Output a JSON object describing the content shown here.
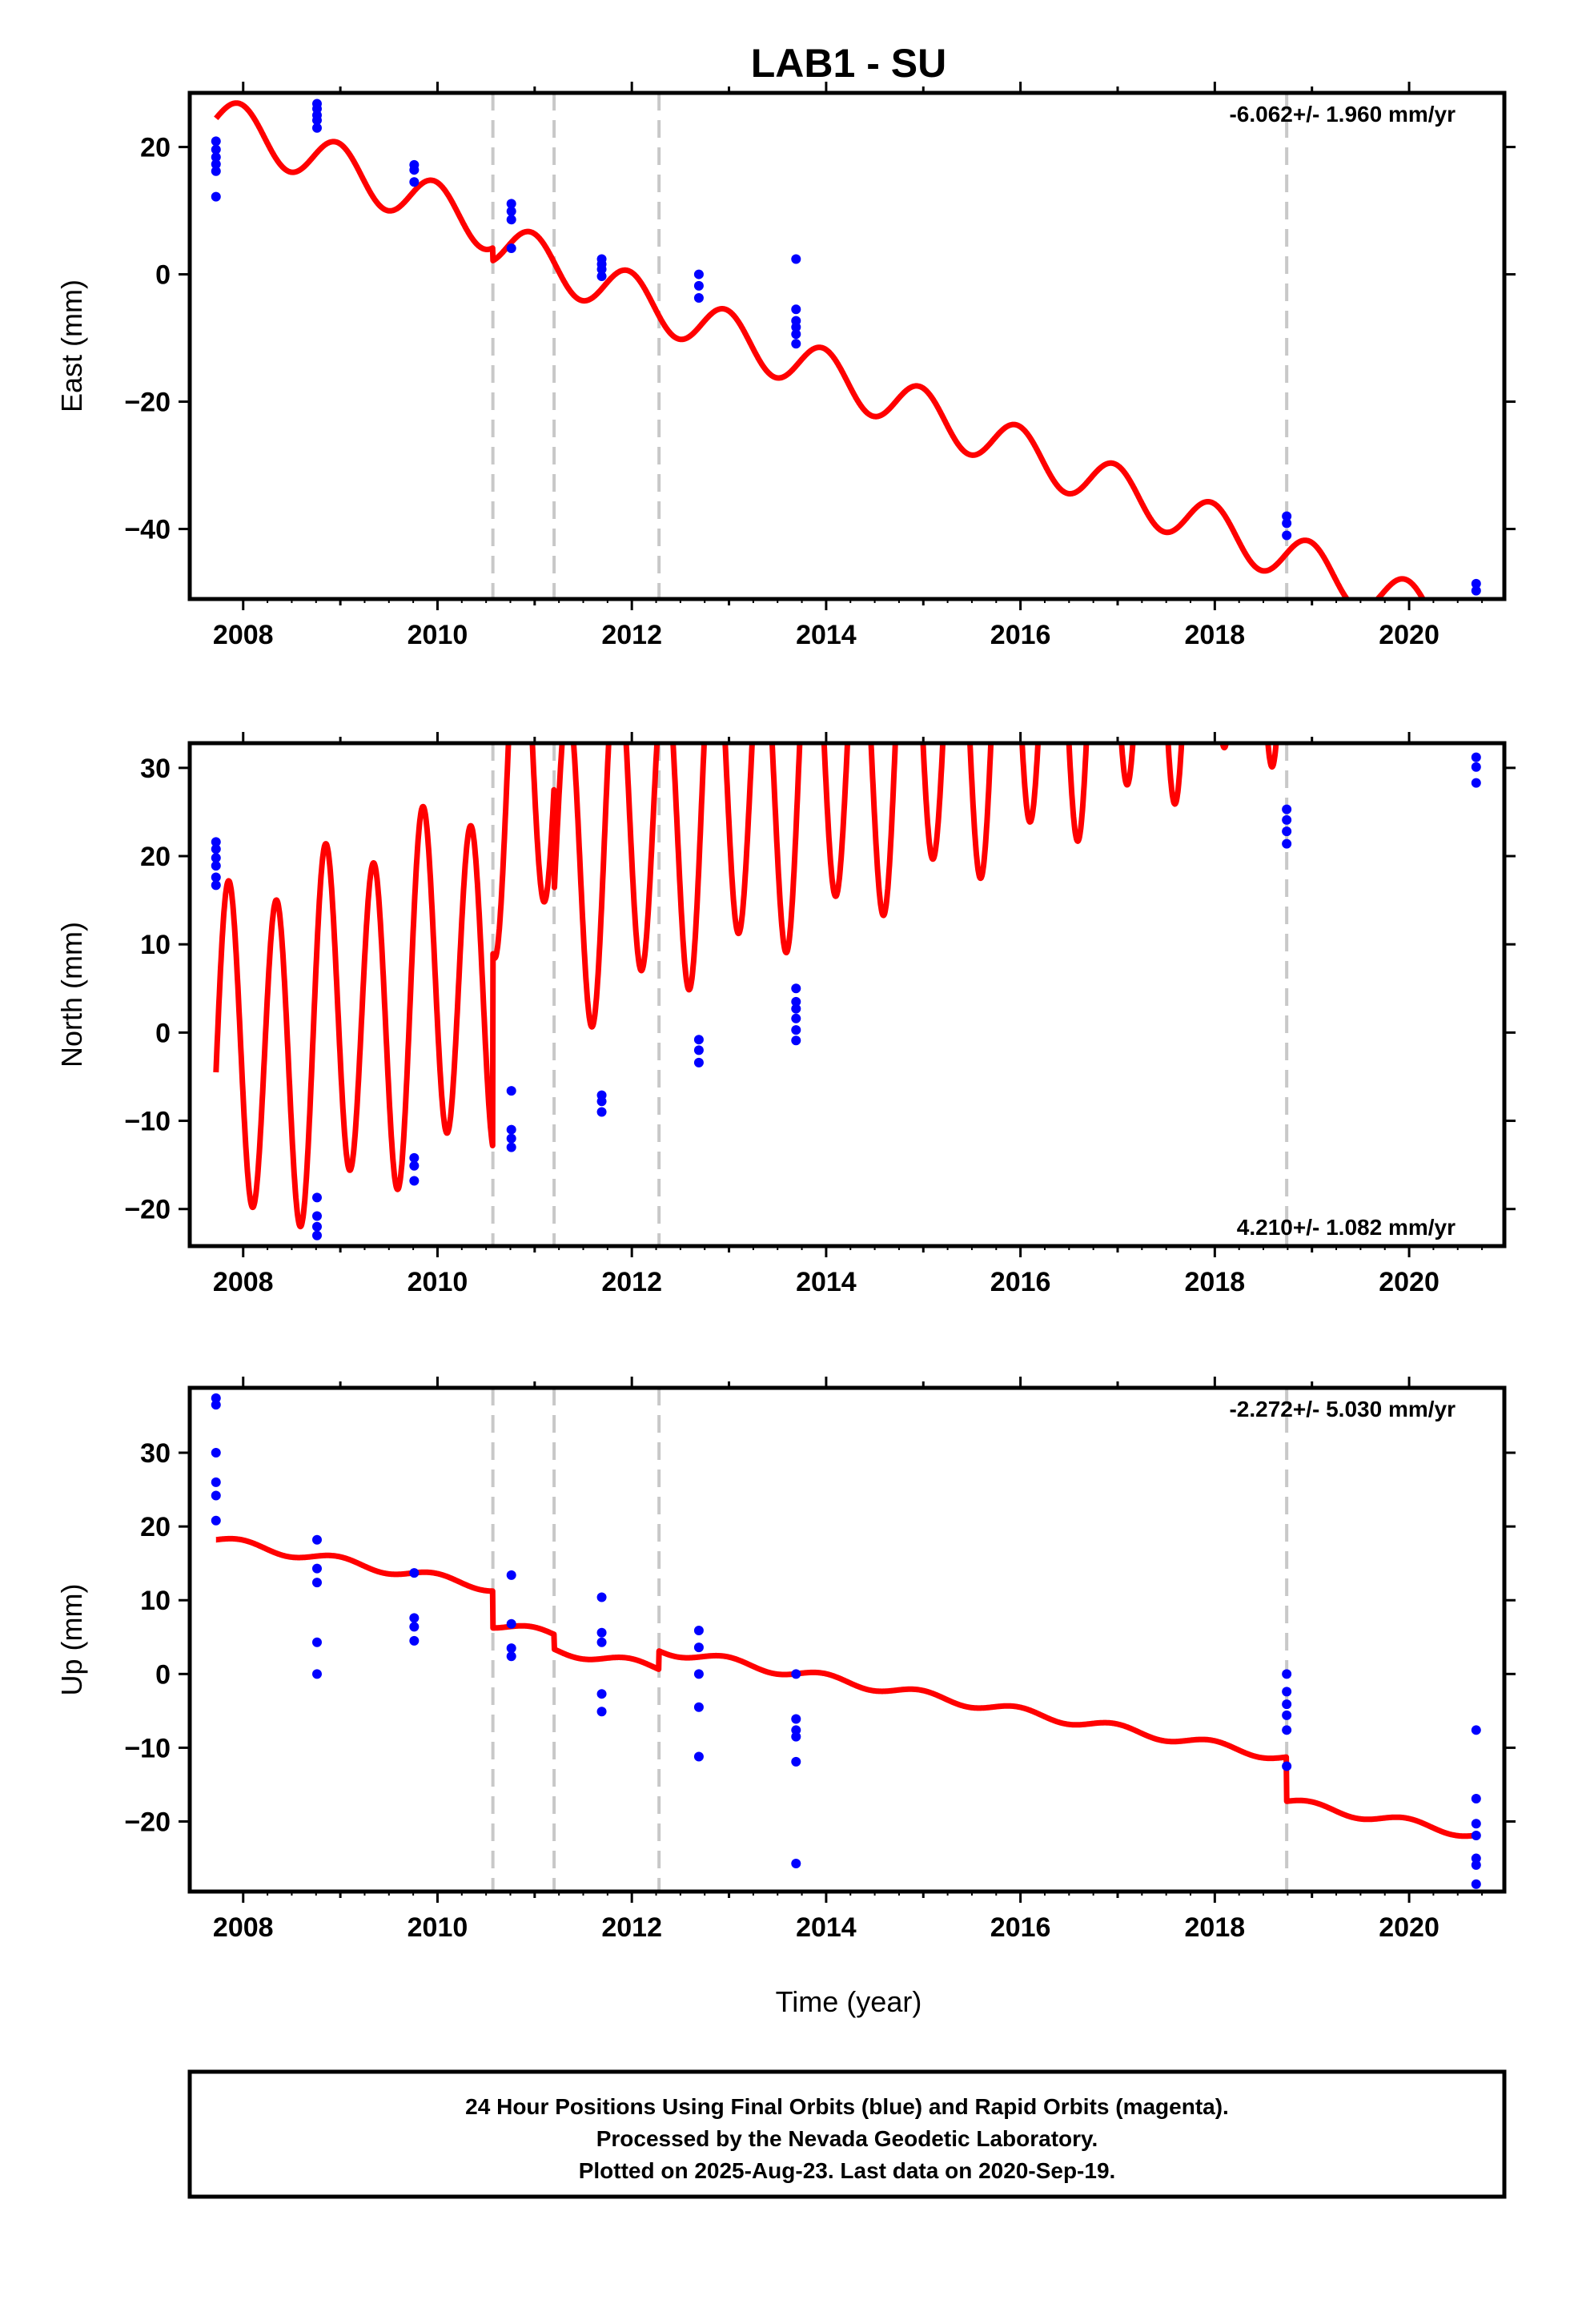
{
  "title": "LAB1 - SU",
  "xlabel": "Time (year)",
  "caption": [
    "24 Hour Positions Using Final Orbits (blue) and Rapid Orbits (magenta).",
    "Processed by the Nevada Geodetic Laboratory.",
    "Plotted on 2025-Aug-23. Last data on 2020-Sep-19."
  ],
  "colors": {
    "data_points": "#0000ff",
    "model": "#ff0000",
    "step_lines": "#c8c8c8",
    "axes": "#000000"
  },
  "chart_data": [
    {
      "type": "scatter",
      "name": "east",
      "ylabel": "East (mm)",
      "rate_text": "-6.062+/- 1.960 mm/yr",
      "rate_position": "top-right",
      "xlim": [
        2007.45,
        2020.98
      ],
      "ylim": [
        -51,
        28.5
      ],
      "x_ticks": [
        2008,
        2010,
        2012,
        2014,
        2016,
        2018,
        2020
      ],
      "y_ticks": [
        20,
        0,
        -20,
        -40
      ],
      "grid": false,
      "step_epochs": [
        2010.57,
        2011.2,
        2012.28,
        2018.74
      ],
      "model": {
        "t0": 2007.72,
        "y0": 24.5,
        "rate": -6.062,
        "annual_amplitude": 3.8,
        "annual_phase": 0.0,
        "semiannual_amplitude": 0.0,
        "semiannual_phase": 0.0,
        "offsets": [
          -2.0,
          0.0,
          0.0,
          0.0
        ]
      },
      "points": [
        [
          2007.72,
          12.2
        ],
        [
          2007.72,
          16.2
        ],
        [
          2007.72,
          17.3
        ],
        [
          2007.72,
          18.4
        ],
        [
          2007.72,
          19.6
        ],
        [
          2007.72,
          20.9
        ],
        [
          2008.76,
          23.0
        ],
        [
          2008.76,
          24.2
        ],
        [
          2008.76,
          25.0
        ],
        [
          2008.76,
          26.0
        ],
        [
          2008.76,
          26.8
        ],
        [
          2009.76,
          14.5
        ],
        [
          2009.76,
          16.4
        ],
        [
          2009.76,
          17.2
        ],
        [
          2010.76,
          4.1
        ],
        [
          2010.76,
          8.6
        ],
        [
          2010.76,
          9.9
        ],
        [
          2010.76,
          11.1
        ],
        [
          2011.69,
          -0.3
        ],
        [
          2011.69,
          0.8
        ],
        [
          2011.69,
          1.6
        ],
        [
          2011.69,
          2.4
        ],
        [
          2012.69,
          -3.7
        ],
        [
          2012.69,
          -1.8
        ],
        [
          2012.69,
          0.0
        ],
        [
          2013.69,
          -10.9
        ],
        [
          2013.69,
          -9.4
        ],
        [
          2013.69,
          -8.3
        ],
        [
          2013.69,
          -7.3
        ],
        [
          2013.69,
          -5.5
        ],
        [
          2013.69,
          2.4
        ],
        [
          2018.74,
          -41.0
        ],
        [
          2018.74,
          -39.1
        ],
        [
          2018.74,
          -38.0
        ],
        [
          2020.69,
          -49.7
        ],
        [
          2020.69,
          -48.6
        ]
      ]
    },
    {
      "type": "scatter",
      "name": "north",
      "ylabel": "North (mm)",
      "rate_text": "4.210+/- 1.082 mm/yr",
      "rate_position": "bottom-right",
      "xlim": [
        2007.45,
        2020.98
      ],
      "ylim": [
        -24.2,
        32.8
      ],
      "x_ticks": [
        2008,
        2010,
        2012,
        2014,
        2016,
        2018,
        2020
      ],
      "y_ticks": [
        30,
        20,
        10,
        0,
        -10,
        -20
      ],
      "grid": false,
      "step_epochs": [
        2010.57,
        2011.2,
        2012.28,
        2018.74
      ],
      "model": {
        "t0": 2007.72,
        "y0": -4.5,
        "rate": 4.21,
        "annual_amplitude": 3.0,
        "annual_phase": 0.0,
        "semiannual_amplitude": 19.0,
        "semiannual_phase": 0.0,
        "offsets": [
          22.0,
          -12.0,
          0.0,
          3.0
        ]
      },
      "points": [
        [
          2007.72,
          16.7
        ],
        [
          2007.72,
          17.6
        ],
        [
          2007.72,
          18.9
        ],
        [
          2007.72,
          19.8
        ],
        [
          2007.72,
          20.8
        ],
        [
          2007.72,
          21.6
        ],
        [
          2008.76,
          -23.0
        ],
        [
          2008.76,
          -22.0
        ],
        [
          2008.76,
          -20.8
        ],
        [
          2008.76,
          -18.7
        ],
        [
          2009.76,
          -16.8
        ],
        [
          2009.76,
          -15.1
        ],
        [
          2009.76,
          -14.2
        ],
        [
          2010.76,
          -13.0
        ],
        [
          2010.76,
          -12.0
        ],
        [
          2010.76,
          -11.0
        ],
        [
          2010.76,
          -6.6
        ],
        [
          2011.69,
          -9.0
        ],
        [
          2011.69,
          -7.8
        ],
        [
          2011.69,
          -7.1
        ],
        [
          2012.69,
          -3.4
        ],
        [
          2012.69,
          -2.0
        ],
        [
          2012.69,
          -0.8
        ],
        [
          2013.69,
          -0.9
        ],
        [
          2013.69,
          0.3
        ],
        [
          2013.69,
          1.6
        ],
        [
          2013.69,
          2.7
        ],
        [
          2013.69,
          3.5
        ],
        [
          2013.69,
          5.0
        ],
        [
          2018.74,
          21.4
        ],
        [
          2018.74,
          22.8
        ],
        [
          2018.74,
          24.1
        ],
        [
          2018.74,
          25.3
        ],
        [
          2020.69,
          28.3
        ],
        [
          2020.69,
          30.1
        ],
        [
          2020.69,
          31.2
        ]
      ]
    },
    {
      "type": "scatter",
      "name": "up",
      "ylabel": "Up (mm)",
      "rate_text": "-2.272+/- 5.030 mm/yr",
      "rate_position": "top-right",
      "xlim": [
        2007.45,
        2020.98
      ],
      "ylim": [
        -29.5,
        38.8
      ],
      "x_ticks": [
        2008,
        2010,
        2012,
        2014,
        2016,
        2018,
        2020
      ],
      "y_ticks": [
        30,
        20,
        10,
        0,
        -10,
        -20
      ],
      "grid": false,
      "step_epochs": [
        2010.57,
        2011.2,
        2012.28,
        2018.74
      ],
      "model": {
        "t0": 2007.72,
        "y0": 18.2,
        "rate": -2.272,
        "annual_amplitude": 0.6,
        "annual_phase": 0.0,
        "semiannual_amplitude": 0.0,
        "semiannual_phase": 0.0,
        "offsets": [
          -5.0,
          -2.0,
          2.5,
          -6.0
        ]
      },
      "points": [
        [
          2007.72,
          20.8
        ],
        [
          2007.72,
          24.2
        ],
        [
          2007.72,
          26.0
        ],
        [
          2007.72,
          30.0
        ],
        [
          2007.72,
          36.5
        ],
        [
          2007.72,
          37.4
        ],
        [
          2008.76,
          0.0
        ],
        [
          2008.76,
          4.3
        ],
        [
          2008.76,
          12.4
        ],
        [
          2008.76,
          14.3
        ],
        [
          2008.76,
          18.2
        ],
        [
          2009.76,
          4.5
        ],
        [
          2009.76,
          6.4
        ],
        [
          2009.76,
          7.6
        ],
        [
          2009.76,
          13.7
        ],
        [
          2010.76,
          2.4
        ],
        [
          2010.76,
          3.5
        ],
        [
          2010.76,
          6.8
        ],
        [
          2010.76,
          13.4
        ],
        [
          2011.69,
          -5.1
        ],
        [
          2011.69,
          -2.7
        ],
        [
          2011.69,
          4.3
        ],
        [
          2011.69,
          5.6
        ],
        [
          2011.69,
          10.4
        ],
        [
          2012.69,
          -11.2
        ],
        [
          2012.69,
          -4.5
        ],
        [
          2012.69,
          0.0
        ],
        [
          2012.69,
          3.6
        ],
        [
          2012.69,
          5.9
        ],
        [
          2013.69,
          -25.7
        ],
        [
          2013.69,
          -11.9
        ],
        [
          2013.69,
          -8.5
        ],
        [
          2013.69,
          -7.6
        ],
        [
          2013.69,
          -6.1
        ],
        [
          2013.69,
          0.0
        ],
        [
          2018.74,
          -12.5
        ],
        [
          2018.74,
          -7.6
        ],
        [
          2018.74,
          -5.6
        ],
        [
          2018.74,
          -4.1
        ],
        [
          2018.74,
          -2.4
        ],
        [
          2018.74,
          0.0
        ],
        [
          2020.69,
          -28.5
        ],
        [
          2020.69,
          -25.9
        ],
        [
          2020.69,
          -25.0
        ],
        [
          2020.69,
          -21.9
        ],
        [
          2020.69,
          -20.3
        ],
        [
          2020.69,
          -16.9
        ],
        [
          2020.69,
          -7.6
        ]
      ]
    }
  ]
}
